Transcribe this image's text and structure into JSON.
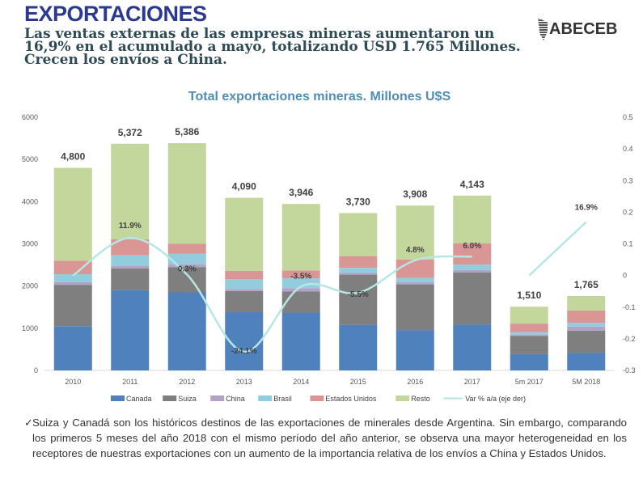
{
  "header": {
    "title": "EXPORTACIONES",
    "subtitle": "Las ventas externas de las empresas mineras aumentaron un 16,9%  en el acumulado a mayo, totalizando USD 1.765 Millones. Crecen los envíos a China.",
    "logo_text": "ABECEB"
  },
  "chart_data": {
    "type": "bar",
    "stacked": true,
    "title": "Total exportaciones mineras. Millones U$S",
    "categories": [
      "2010",
      "2011",
      "2012",
      "2013",
      "2014",
      "2015",
      "2016",
      "2017",
      "5m 2017",
      "5M 2018"
    ],
    "y_left": {
      "min": 0,
      "max": 6000,
      "ticks": [
        "0",
        "1000",
        "2000",
        "3000",
        "4000",
        "5000",
        "6000"
      ]
    },
    "y_right": {
      "min": -0.3,
      "max": 0.5,
      "ticks": [
        "-0.3",
        "-0.2",
        "-0.1",
        "0",
        "0.1",
        "0.2",
        "0.3",
        "0.4",
        "0.5"
      ]
    },
    "grid": false,
    "legend_position": "bottom",
    "series": [
      {
        "name": "Canada",
        "color": "#4f81bd",
        "values": [
          1050,
          1900,
          1850,
          1380,
          1370,
          1080,
          950,
          1090,
          390,
          420
        ]
      },
      {
        "name": "Suiza",
        "color": "#7f7f7f",
        "values": [
          980,
          520,
          600,
          500,
          500,
          1190,
          1090,
          1230,
          430,
          520
        ]
      },
      {
        "name": "China",
        "color": "#b3a2c7",
        "values": [
          60,
          60,
          60,
          50,
          80,
          40,
          50,
          60,
          30,
          100
        ]
      },
      {
        "name": "Brasil",
        "color": "#93cddd",
        "values": [
          190,
          250,
          260,
          230,
          230,
          120,
          100,
          130,
          60,
          90
        ]
      },
      {
        "name": "Estados Unidos",
        "color": "#d99694",
        "values": [
          320,
          380,
          230,
          200,
          190,
          280,
          440,
          500,
          200,
          290
        ]
      },
      {
        "name": "Resto",
        "color": "#c3d69b",
        "values": [
          2200,
          2262,
          2386,
          1730,
          1576,
          1020,
          1278,
          1133,
          400,
          345
        ]
      }
    ],
    "totals": [
      "4,800",
      "5,372",
      "5,386",
      "4,090",
      "3,946",
      "3,730",
      "3,908",
      "4,143",
      "1,510",
      "1,765"
    ],
    "line_series": {
      "name": "Var % a/a (eje der)",
      "color": "#b7e6e4",
      "segments": [
        {
          "x": [
            "2010",
            "2011",
            "2012",
            "2013",
            "2014",
            "2015",
            "2016",
            "2017"
          ],
          "values": [
            0.0,
            0.119,
            0.003,
            -0.241,
            -0.035,
            -0.055,
            0.048,
            0.06
          ]
        },
        {
          "x": [
            "5m 2017",
            "5M 2018"
          ],
          "values": [
            0.0,
            0.169
          ]
        }
      ],
      "labels": [
        {
          "x": "2011",
          "text": "11.9%"
        },
        {
          "x": "2012",
          "text": "0.3%"
        },
        {
          "x": "2013",
          "text": "-24.1%"
        },
        {
          "x": "2014",
          "text": "-3.5%"
        },
        {
          "x": "2015",
          "text": "-5.5%"
        },
        {
          "x": "2016",
          "text": "4.8%"
        },
        {
          "x": "2017",
          "text": "6.0%"
        },
        {
          "x": "5M 2018",
          "text": "16.9%"
        }
      ]
    }
  },
  "footnote": {
    "bullet": "✓",
    "text": "Suiza y Canadá son los históricos destinos de las exportaciones de minerales desde Argentina. Sin embargo, comparando los primeros 5 meses del año 2018 con el mismo período del año anterior, se observa una mayor heterogeneidad en los receptores de nuestras exportaciones con un aumento de la importancia relativa de los envíos a China y Estados Unidos."
  }
}
